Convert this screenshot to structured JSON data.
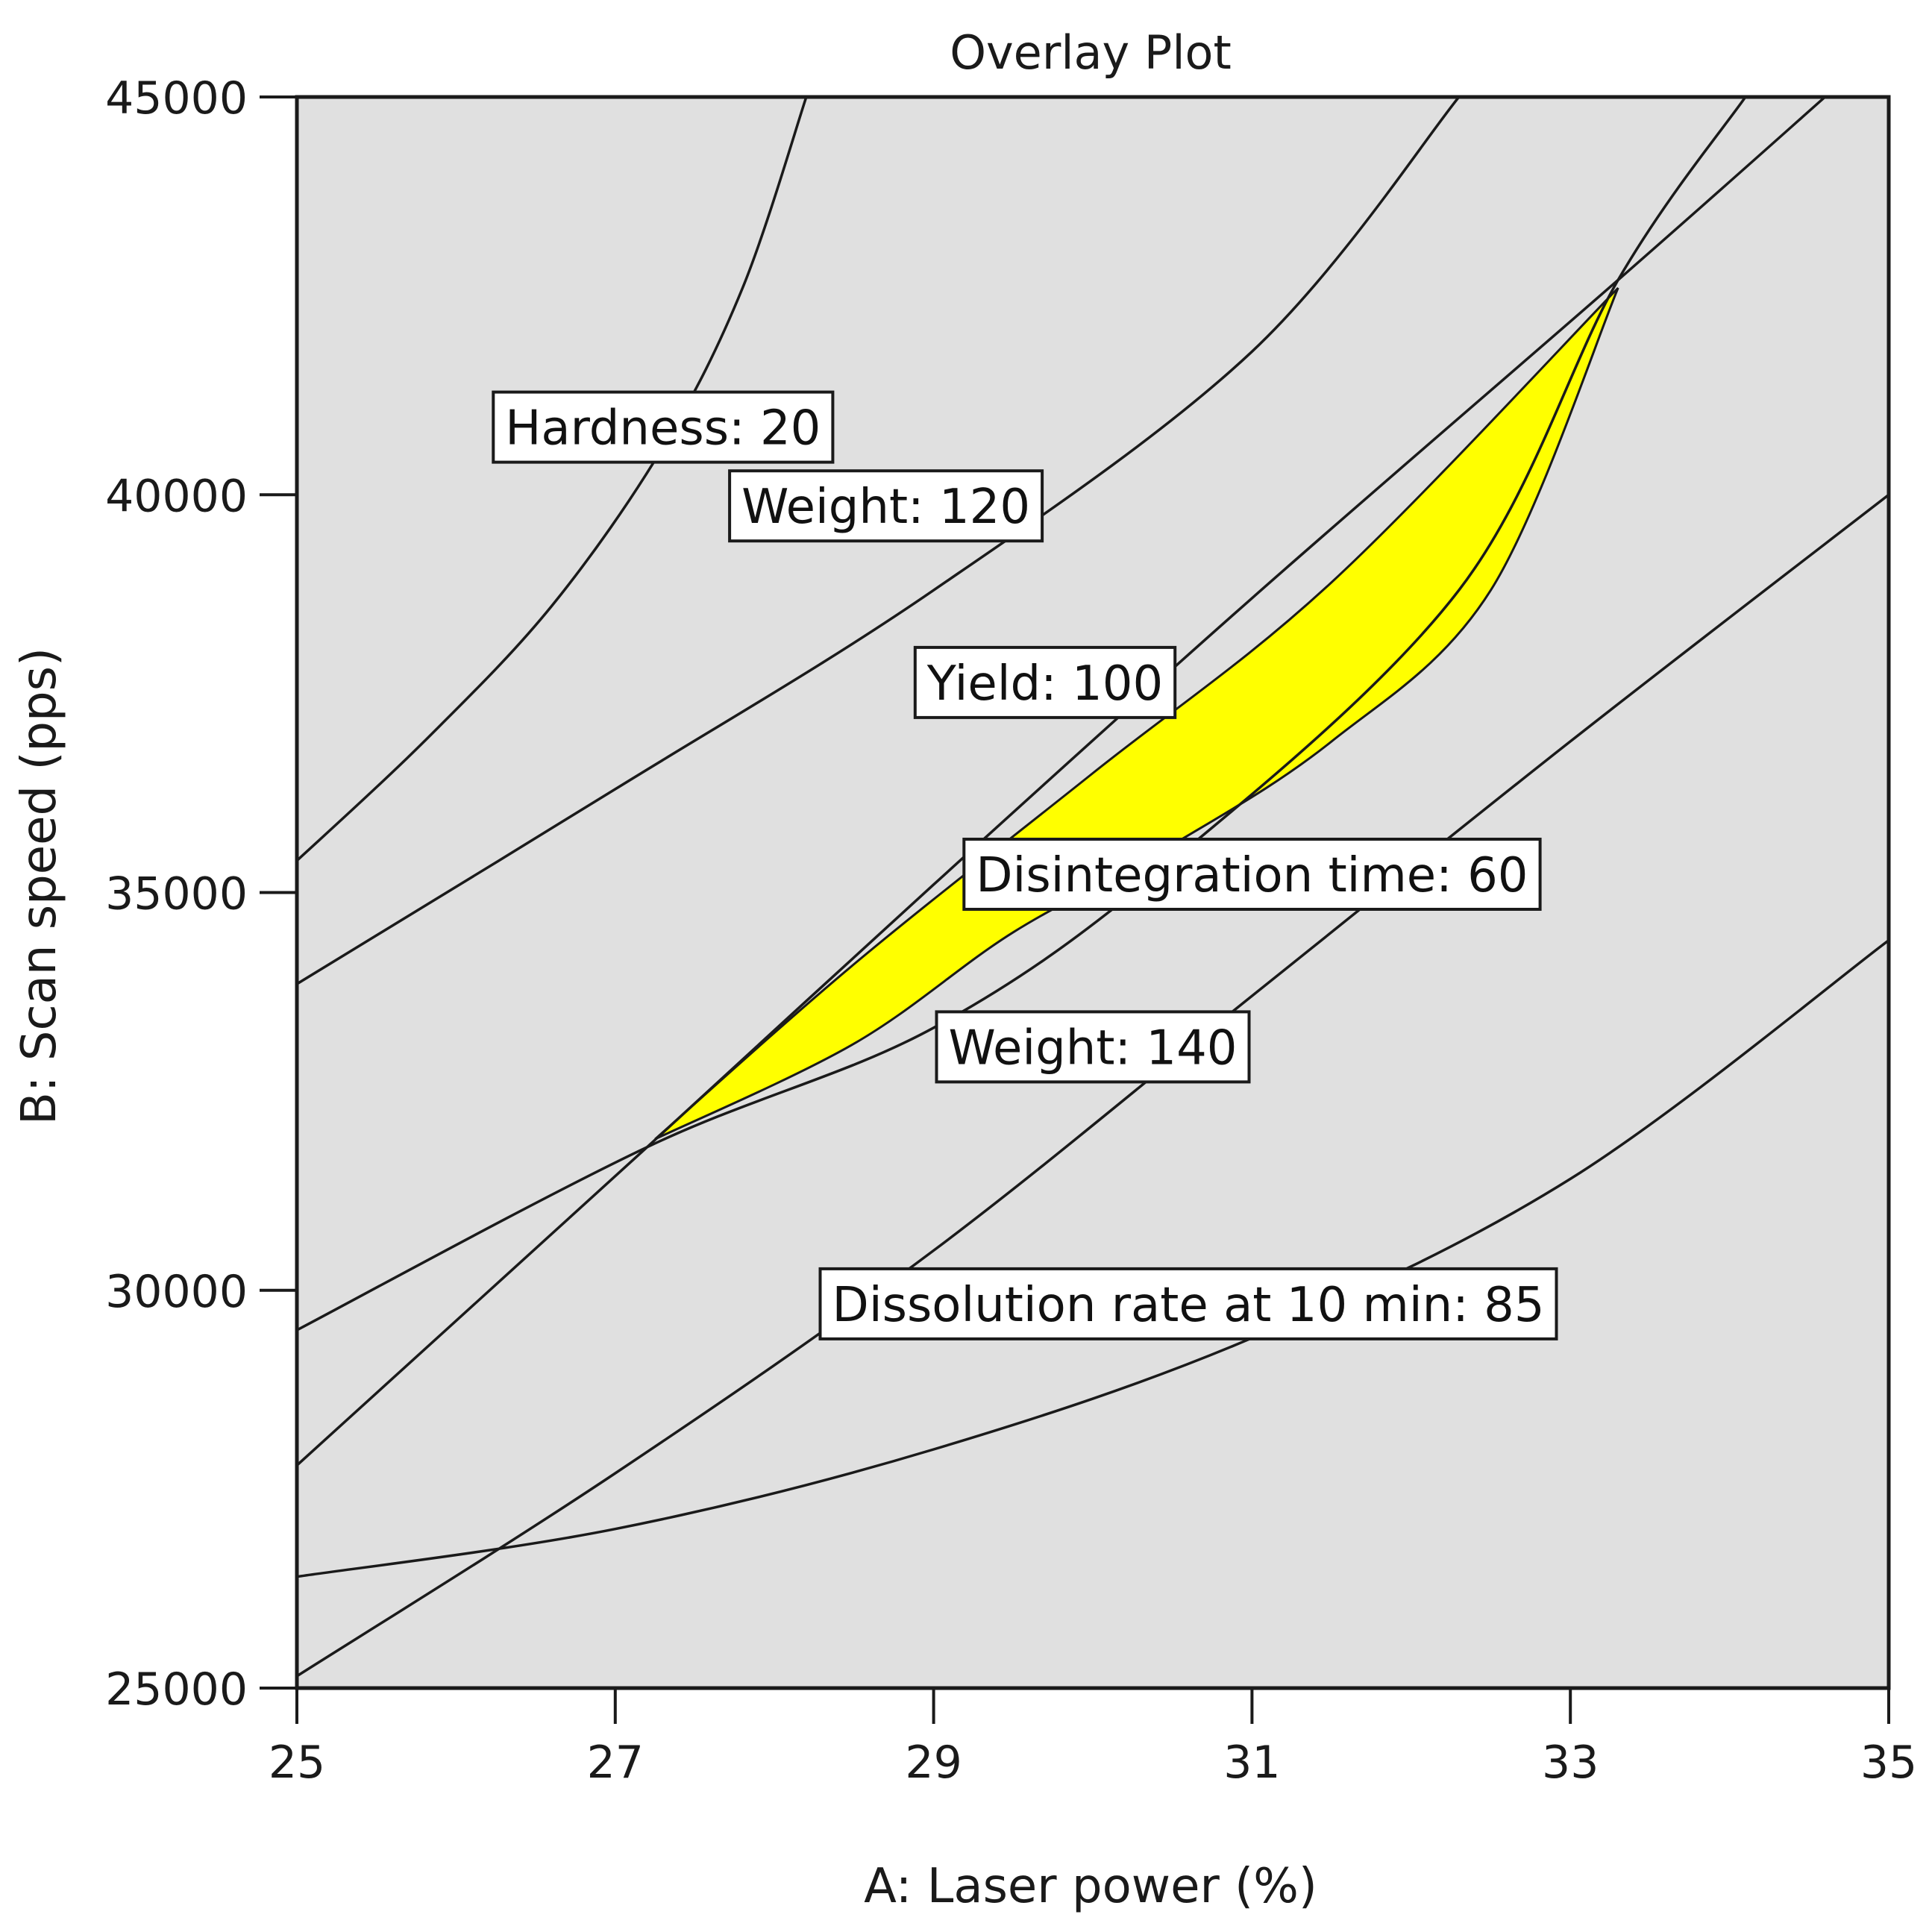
{
  "chart_data": {
    "type": "contour",
    "title": "Overlay Plot",
    "xlabel": "A: Laser power (%)",
    "ylabel": "B: Scan speed (pps)",
    "xlim": [
      25,
      35
    ],
    "ylim": [
      25000,
      45000
    ],
    "xticks": [
      25,
      27,
      29,
      31,
      33,
      35
    ],
    "yticks": [
      25000,
      30000,
      35000,
      40000,
      45000
    ],
    "xtick_labels": [
      "25",
      "27",
      "29",
      "31",
      "33",
      "35"
    ],
    "ytick_labels": [
      "25000",
      "30000",
      "35000",
      "40000",
      "45000"
    ],
    "grid": false,
    "background_color": "#e0e0e0",
    "region_color": "#ffff00",
    "contours": [
      {
        "label": "Hardness: 20",
        "label_at": [
          27.3,
          40850
        ],
        "points": [
          [
            25,
            35400
          ],
          [
            25.8,
            36900
          ],
          [
            26.6,
            38600
          ],
          [
            27.3,
            40600
          ],
          [
            27.8,
            42600
          ],
          [
            28.2,
            45000
          ]
        ]
      },
      {
        "label": "Weight: 120",
        "label_at": [
          28.7,
          39860
        ],
        "points": [
          [
            25,
            33850
          ],
          [
            27,
            36300
          ],
          [
            29,
            38800
          ],
          [
            31,
            41800
          ],
          [
            32.3,
            45000
          ]
        ]
      },
      {
        "label": "Yield: 100",
        "label_at": [
          29.7,
          37640
        ],
        "points": [
          [
            25,
            27800
          ],
          [
            27.2,
            31800
          ],
          [
            29,
            35100
          ],
          [
            31,
            38700
          ],
          [
            33.3,
            42700
          ],
          [
            34.6,
            45000
          ]
        ]
      },
      {
        "label": "Disintegration time: 60",
        "label_at": [
          31.0,
          35230
        ],
        "points": [
          [
            25,
            29500
          ],
          [
            27.2,
            31800
          ],
          [
            29,
            33300
          ],
          [
            30.5,
            35400
          ],
          [
            32.3,
            38800
          ],
          [
            33.3,
            42700
          ],
          [
            34.1,
            45000
          ]
        ]
      },
      {
        "label": "Weight: 140",
        "label_at": [
          30.0,
          33060
        ],
        "points": [
          [
            25,
            25150
          ],
          [
            27,
            27700
          ],
          [
            29,
            30500
          ],
          [
            31,
            33700
          ],
          [
            33,
            36900
          ],
          [
            35,
            40000
          ]
        ]
      },
      {
        "label": "Dissolution rate at 10 min: 85",
        "label_at": [
          30.6,
          29830
        ],
        "points": [
          [
            25,
            26400
          ],
          [
            27,
            27000
          ],
          [
            29,
            28000
          ],
          [
            31,
            29400
          ],
          [
            33,
            31400
          ],
          [
            35,
            34400
          ]
        ]
      }
    ],
    "feasible_region": {
      "upper": [
        [
          27.25,
          31900
        ],
        [
          28.5,
          34100
        ],
        [
          30,
          36500
        ],
        [
          31.5,
          38900
        ],
        [
          33.3,
          42600
        ]
      ],
      "lower": [
        [
          27.25,
          31900
        ],
        [
          28.5,
          33100
        ],
        [
          29.5,
          34500
        ],
        [
          30.5,
          35600
        ],
        [
          31.5,
          36900
        ],
        [
          32.5,
          38800
        ],
        [
          33.3,
          42600
        ]
      ]
    }
  }
}
